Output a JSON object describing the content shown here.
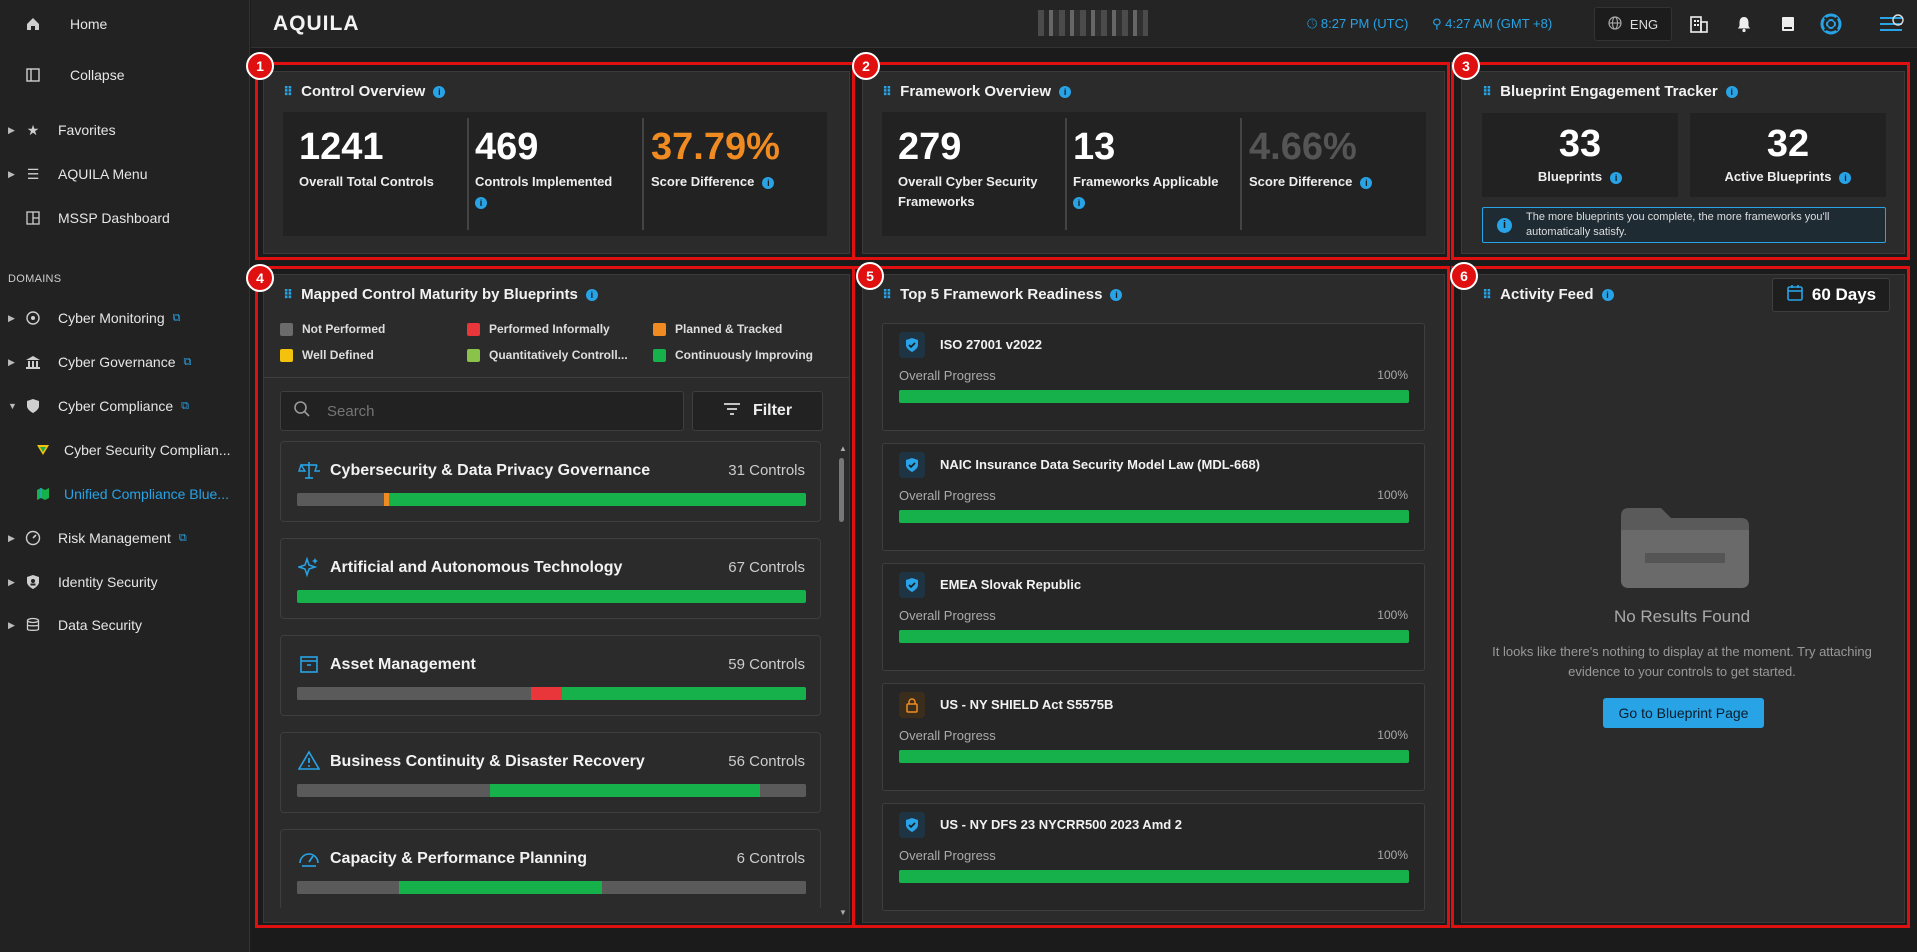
{
  "sidebar": {
    "home": "Home",
    "collapse": "Collapse",
    "favorites": "Favorites",
    "aquila_menu": "AQUILA Menu",
    "mssp": "MSSP Dashboard",
    "domains_header": "DOMAINS",
    "items": [
      {
        "label": "Cyber Monitoring"
      },
      {
        "label": "Cyber Governance"
      },
      {
        "label": "Cyber Compliance"
      },
      {
        "label": "Cyber Security Complian..."
      },
      {
        "label": "Unified Compliance Blue..."
      },
      {
        "label": "Risk Management"
      },
      {
        "label": "Identity Security"
      },
      {
        "label": "Data Security"
      }
    ]
  },
  "topbar": {
    "logo": "AQUILA",
    "time_utc": "8:27 PM (UTC)",
    "time_local": "4:27 AM (GMT +8)",
    "language": "ENG"
  },
  "badges": [
    "1",
    "2",
    "3",
    "4",
    "5",
    "6"
  ],
  "colors": {
    "accent": "#27a3e6",
    "orange": "#f08b22",
    "green": "#17b14c",
    "red": "#e01010",
    "gray": "#5a5a5a"
  },
  "control_overview": {
    "title": "Control Overview",
    "stats": [
      {
        "value": "1241",
        "label": "Overall Total Controls"
      },
      {
        "value": "469",
        "label": "Controls Implemented"
      },
      {
        "value": "37.79%",
        "label": "Score Difference"
      }
    ]
  },
  "framework_overview": {
    "title": "Framework Overview",
    "stats": [
      {
        "value": "279",
        "label": "Overall Cyber Security Frameworks"
      },
      {
        "value": "13",
        "label": "Frameworks Applicable"
      },
      {
        "value": "4.66%",
        "label": "Score Difference"
      }
    ]
  },
  "blueprint_tracker": {
    "title": "Blueprint Engagement Tracker",
    "blueprints": {
      "value": "33",
      "label": "Blueprints"
    },
    "active": {
      "value": "32",
      "label": "Active Blueprints"
    },
    "note": "The more blueprints you complete, the more frameworks you'll automatically satisfy."
  },
  "maturity": {
    "title": "Mapped Control Maturity by Blueprints",
    "legend": [
      {
        "label": "Not Performed",
        "color": "#6b6b6b"
      },
      {
        "label": "Performed Informally",
        "color": "#e8363a"
      },
      {
        "label": "Planned & Tracked",
        "color": "#f08b22"
      },
      {
        "label": "Well Defined",
        "color": "#f4c20d"
      },
      {
        "label": "Quantitatively Controll...",
        "color": "#8bc34a"
      },
      {
        "label": "Continuously Improving",
        "color": "#17b14c"
      }
    ],
    "search_placeholder": "Search",
    "filter_label": "Filter",
    "categories": [
      {
        "name": "Cybersecurity & Data Privacy Governance",
        "count": "31 Controls",
        "segments": [
          {
            "c": "#5a5a5a",
            "f": 0.17
          },
          {
            "c": "#f08b22",
            "f": 0.01
          },
          {
            "c": "#17b14c",
            "f": 0.82
          }
        ]
      },
      {
        "name": "Artificial and Autonomous Technology",
        "count": "67 Controls",
        "segments": [
          {
            "c": "#17b14c",
            "f": 1.0
          }
        ]
      },
      {
        "name": "Asset Management",
        "count": "59 Controls",
        "segments": [
          {
            "c": "#5a5a5a",
            "f": 0.46
          },
          {
            "c": "#e8363a",
            "f": 0.06
          },
          {
            "c": "#17b14c",
            "f": 0.48
          }
        ]
      },
      {
        "name": "Business Continuity & Disaster Recovery",
        "count": "56 Controls",
        "segments": [
          {
            "c": "#5a5a5a",
            "f": 0.38
          },
          {
            "c": "#17b14c",
            "f": 0.53
          },
          {
            "c": "#5a5a5a",
            "f": 0.09
          }
        ]
      },
      {
        "name": "Capacity & Performance Planning",
        "count": "6 Controls",
        "segments": [
          {
            "c": "#5a5a5a",
            "f": 0.2
          },
          {
            "c": "#17b14c",
            "f": 0.4
          },
          {
            "c": "#5a5a5a",
            "f": 0.4
          }
        ]
      }
    ]
  },
  "readiness": {
    "title": "Top 5 Framework Readiness",
    "progress_label": "Overall Progress",
    "frameworks": [
      {
        "name": "ISO 27001 v2022",
        "percent": "100%",
        "progress": 1.0,
        "icon": "shield-icon"
      },
      {
        "name": "NAIC Insurance Data Security Model Law (MDL-668)",
        "percent": "100%",
        "progress": 1.0,
        "icon": "shield-icon"
      },
      {
        "name": "EMEA Slovak Republic",
        "percent": "100%",
        "progress": 1.0,
        "icon": "shield-icon"
      },
      {
        "name": "US - NY SHIELD Act S5575B",
        "percent": "100%",
        "progress": 1.0,
        "icon": "lock-icon"
      },
      {
        "name": "US - NY DFS 23 NYCRR500 2023 Amd 2",
        "percent": "100%",
        "progress": 1.0,
        "icon": "shield-icon"
      }
    ]
  },
  "activity": {
    "title": "Activity Feed",
    "range": "60 Days",
    "empty_title": "No Results Found",
    "empty_text": "It looks like there's nothing to display at the moment. Try attaching evidence to your controls to get started.",
    "button": "Go to Blueprint Page"
  }
}
